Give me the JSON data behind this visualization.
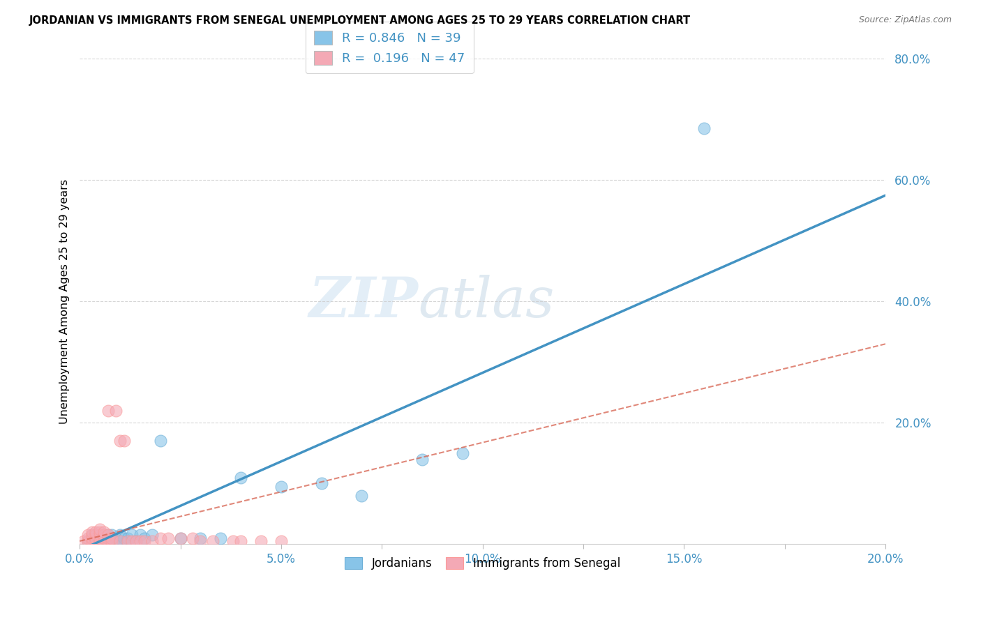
{
  "title": "JORDANIAN VS IMMIGRANTS FROM SENEGAL UNEMPLOYMENT AMONG AGES 25 TO 29 YEARS CORRELATION CHART",
  "source": "Source: ZipAtlas.com",
  "ylabel": "Unemployment Among Ages 25 to 29 years",
  "xlim": [
    0.0,
    0.2
  ],
  "ylim": [
    0.0,
    0.8
  ],
  "xtick_labels": [
    "0.0%",
    "",
    "5.0%",
    "",
    "10.0%",
    "",
    "15.0%",
    "",
    "20.0%"
  ],
  "xtick_vals": [
    0.0,
    0.025,
    0.05,
    0.075,
    0.1,
    0.125,
    0.15,
    0.175,
    0.2
  ],
  "ytick_labels": [
    "20.0%",
    "40.0%",
    "60.0%",
    "80.0%"
  ],
  "ytick_vals": [
    0.2,
    0.4,
    0.6,
    0.8
  ],
  "blue_color": "#88c4e8",
  "pink_color": "#f4a9b5",
  "blue_scatter_edge": "#6baed6",
  "pink_scatter_edge": "#fb9a99",
  "blue_line_color": "#4393c3",
  "pink_line_color": "#d6604d",
  "tick_label_color": "#4393c3",
  "R_blue": "0.846",
  "N_blue": "39",
  "R_pink": "0.196",
  "N_pink": "47",
  "watermark": "ZIPatlas",
  "blue_scatter": [
    [
      0.002,
      0.005
    ],
    [
      0.003,
      0.008
    ],
    [
      0.003,
      0.015
    ],
    [
      0.004,
      0.005
    ],
    [
      0.004,
      0.01
    ],
    [
      0.005,
      0.005
    ],
    [
      0.005,
      0.01
    ],
    [
      0.005,
      0.015
    ],
    [
      0.006,
      0.005
    ],
    [
      0.006,
      0.01
    ],
    [
      0.007,
      0.005
    ],
    [
      0.007,
      0.01
    ],
    [
      0.007,
      0.015
    ],
    [
      0.008,
      0.005
    ],
    [
      0.008,
      0.01
    ],
    [
      0.008,
      0.015
    ],
    [
      0.009,
      0.005
    ],
    [
      0.009,
      0.01
    ],
    [
      0.01,
      0.005
    ],
    [
      0.01,
      0.015
    ],
    [
      0.011,
      0.01
    ],
    [
      0.012,
      0.005
    ],
    [
      0.012,
      0.01
    ],
    [
      0.013,
      0.015
    ],
    [
      0.014,
      0.005
    ],
    [
      0.015,
      0.015
    ],
    [
      0.016,
      0.01
    ],
    [
      0.018,
      0.015
    ],
    [
      0.02,
      0.17
    ],
    [
      0.025,
      0.01
    ],
    [
      0.03,
      0.01
    ],
    [
      0.035,
      0.01
    ],
    [
      0.04,
      0.11
    ],
    [
      0.05,
      0.095
    ],
    [
      0.06,
      0.1
    ],
    [
      0.07,
      0.08
    ],
    [
      0.085,
      0.14
    ],
    [
      0.095,
      0.15
    ],
    [
      0.155,
      0.685
    ]
  ],
  "pink_scatter": [
    [
      0.001,
      0.005
    ],
    [
      0.002,
      0.005
    ],
    [
      0.002,
      0.01
    ],
    [
      0.002,
      0.015
    ],
    [
      0.003,
      0.005
    ],
    [
      0.003,
      0.01
    ],
    [
      0.003,
      0.015
    ],
    [
      0.003,
      0.02
    ],
    [
      0.004,
      0.005
    ],
    [
      0.004,
      0.01
    ],
    [
      0.004,
      0.015
    ],
    [
      0.004,
      0.02
    ],
    [
      0.005,
      0.005
    ],
    [
      0.005,
      0.01
    ],
    [
      0.005,
      0.015
    ],
    [
      0.005,
      0.02
    ],
    [
      0.005,
      0.025
    ],
    [
      0.006,
      0.005
    ],
    [
      0.006,
      0.01
    ],
    [
      0.006,
      0.015
    ],
    [
      0.006,
      0.02
    ],
    [
      0.007,
      0.005
    ],
    [
      0.007,
      0.01
    ],
    [
      0.007,
      0.015
    ],
    [
      0.007,
      0.22
    ],
    [
      0.008,
      0.005
    ],
    [
      0.008,
      0.01
    ],
    [
      0.009,
      0.22
    ],
    [
      0.01,
      0.005
    ],
    [
      0.01,
      0.17
    ],
    [
      0.011,
      0.17
    ],
    [
      0.012,
      0.005
    ],
    [
      0.013,
      0.005
    ],
    [
      0.014,
      0.005
    ],
    [
      0.015,
      0.005
    ],
    [
      0.016,
      0.005
    ],
    [
      0.018,
      0.005
    ],
    [
      0.02,
      0.01
    ],
    [
      0.022,
      0.01
    ],
    [
      0.025,
      0.01
    ],
    [
      0.028,
      0.01
    ],
    [
      0.03,
      0.005
    ],
    [
      0.033,
      0.005
    ],
    [
      0.038,
      0.005
    ],
    [
      0.04,
      0.005
    ],
    [
      0.045,
      0.005
    ],
    [
      0.05,
      0.005
    ]
  ],
  "blue_trendline_x": [
    0.0,
    0.2
  ],
  "blue_trendline_y": [
    -0.01,
    0.575
  ],
  "pink_trendline_x": [
    0.0,
    0.2
  ],
  "pink_trendline_y": [
    0.005,
    0.33
  ]
}
